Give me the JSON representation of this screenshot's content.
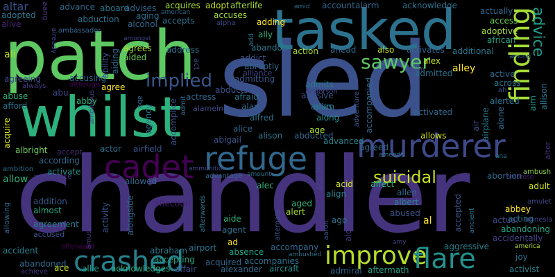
{
  "words": [
    {
      "text": "chandler",
      "color": "#46337e"
    },
    {
      "text": "sled",
      "color": "#3b518b"
    },
    {
      "text": "patch",
      "color": "#5ec962"
    },
    {
      "text": "whilst",
      "color": "#2db27d"
    },
    {
      "text": "tasked",
      "color": "#2c728e"
    },
    {
      "text": "murderer",
      "color": "#3e4989"
    },
    {
      "text": "finding",
      "color": "#a5db36"
    },
    {
      "text": "refuge",
      "color": "#31688e"
    },
    {
      "text": "cadet",
      "color": "#440154"
    },
    {
      "text": "crashed",
      "color": "#26828e"
    },
    {
      "text": "improve",
      "color": "#b5de2b"
    },
    {
      "text": "flare",
      "color": "#21918c"
    },
    {
      "text": "implied",
      "color": "#39558c"
    },
    {
      "text": "sawyer",
      "color": "#5ec962"
    },
    {
      "text": "suicidal",
      "color": "#c8e020"
    },
    {
      "text": "advice",
      "color": "#1f9e89"
    },
    {
      "text": "alter",
      "color": "#472c7a"
    },
    {
      "text": "altar",
      "color": "#3b528b"
    },
    {
      "text": "adopted",
      "color": "#2a788e"
    },
    {
      "text": "alive",
      "color": "#482475"
    },
    {
      "text": "aang",
      "color": "#46337e"
    },
    {
      "text": "already",
      "color": "#3e4989"
    },
    {
      "text": "ali",
      "color": "#b5de2b"
    },
    {
      "text": "agreeing",
      "color": "#3e4989"
    },
    {
      "text": "always",
      "color": "#443a83"
    },
    {
      "text": "abuse",
      "color": "#2db27d"
    },
    {
      "text": "afford",
      "color": "#2c728e"
    },
    {
      "text": "acquire",
      "color": "#d2e21b"
    },
    {
      "text": "albright",
      "color": "#6ece58"
    },
    {
      "text": "ambition",
      "color": "#2c728e"
    },
    {
      "text": "allow",
      "color": "#2db27d"
    },
    {
      "text": "according",
      "color": "#31688e"
    },
    {
      "text": "ambulance",
      "color": "#443983"
    },
    {
      "text": "addition",
      "color": "#38588c"
    },
    {
      "text": "almost",
      "color": "#22a884"
    },
    {
      "text": "agreement",
      "color": "#287c8e"
    },
    {
      "text": "allowing",
      "color": "#31688e"
    },
    {
      "text": "accused",
      "color": "#3b528b"
    },
    {
      "text": "accident",
      "color": "#26828e"
    },
    {
      "text": "afterward",
      "color": "#440154"
    },
    {
      "text": "abandoned",
      "color": "#31688e"
    },
    {
      "text": "achieve",
      "color": "#443983"
    },
    {
      "text": "ace",
      "color": "#c2df23"
    },
    {
      "text": "allie",
      "color": "#1f9e89"
    },
    {
      "text": "acknowledges",
      "color": "#26ad81"
    },
    {
      "text": "affair",
      "color": "#3b528b"
    },
    {
      "text": "alexander",
      "color": "#31688e"
    },
    {
      "text": "aircraft",
      "color": "#21918c"
    },
    {
      "text": "accompanies",
      "color": "#2c728e"
    },
    {
      "text": "acquired",
      "color": "#31688e"
    },
    {
      "text": "accompany",
      "color": "#31688e"
    },
    {
      "text": "absence",
      "color": "#20a486"
    },
    {
      "text": "ad",
      "color": "#fde725"
    },
    {
      "text": "admiral",
      "color": "#31688e"
    },
    {
      "text": "aftermath",
      "color": "#1f9e89"
    },
    {
      "text": "ambushed",
      "color": "#2c728e"
    },
    {
      "text": "amy",
      "color": "#414487"
    },
    {
      "text": "america",
      "color": "#b5de2b"
    },
    {
      "text": "activist",
      "color": "#26828e"
    },
    {
      "text": "joy",
      "color": "#2c728e"
    },
    {
      "text": "aggressive",
      "color": "#26828e"
    },
    {
      "text": "accidentally",
      "color": "#433e85"
    },
    {
      "text": "abandoning",
      "color": "#20a486"
    },
    {
      "text": "acting",
      "color": "#2a788e"
    },
    {
      "text": "abbey",
      "color": "#fde725"
    },
    {
      "text": "adult",
      "color": "#d2e21b"
    },
    {
      "text": "actual",
      "color": "#3e4989"
    },
    {
      "text": "amnesia",
      "color": "#414487"
    },
    {
      "text": "amulet",
      "color": "#414487"
    },
    {
      "text": "ambush",
      "color": "#8fd744"
    },
    {
      "text": "ambrose",
      "color": "#482173"
    },
    {
      "text": "ana",
      "color": "#2a788e"
    },
    {
      "text": "al",
      "color": "#fde725"
    },
    {
      "text": "accepted",
      "color": "#3b528b"
    },
    {
      "text": "ancient",
      "color": "#2c728e"
    },
    {
      "text": "abortion",
      "color": "#31688e"
    },
    {
      "text": "abused",
      "color": "#3b528b"
    },
    {
      "text": "albert",
      "color": "#26828e"
    },
    {
      "text": "allen",
      "color": "#31688e"
    },
    {
      "text": "affect",
      "color": "#29af7f"
    },
    {
      "text": "acid",
      "color": "#d2e21b"
    },
    {
      "text": "align",
      "color": "#26828e"
    },
    {
      "text": "alcoholic",
      "color": "#443983"
    },
    {
      "text": "aaron",
      "color": "#3b528b"
    },
    {
      "text": "ago",
      "color": "#2c728e"
    },
    {
      "text": "alert",
      "color": "#a5db36"
    },
    {
      "text": "aged",
      "color": "#2db27d"
    },
    {
      "text": "alternate",
      "color": "#3b528b"
    },
    {
      "text": "alec",
      "color": "#2db27d"
    },
    {
      "text": "amount",
      "color": "#2c728e"
    },
    {
      "text": "advantage",
      "color": "#31688e"
    },
    {
      "text": "agent",
      "color": "#2c728e"
    },
    {
      "text": "aide",
      "color": "#2db27d"
    },
    {
      "text": "airport",
      "color": "#2c728e"
    },
    {
      "text": "abraham",
      "color": "#2a788e"
    },
    {
      "text": "accepting",
      "color": "#20a486"
    },
    {
      "text": "afterwards",
      "color": "#2a788e"
    },
    {
      "text": "alongside",
      "color": "#31688e"
    },
    {
      "text": "activity",
      "color": "#3b528b"
    },
    {
      "text": "amusement",
      "color": "#443983"
    },
    {
      "text": "affection",
      "color": "#482475"
    },
    {
      "text": "allowed",
      "color": "#31688e"
    },
    {
      "text": "actor",
      "color": "#2c728e"
    },
    {
      "text": "airfield",
      "color": "#39568c"
    },
    {
      "text": "accept",
      "color": "#472c7a"
    },
    {
      "text": "activate",
      "color": "#21918c"
    },
    {
      "text": "alison",
      "color": "#2a788e"
    },
    {
      "text": "abducted",
      "color": "#31688e"
    },
    {
      "text": "abigail",
      "color": "#3b528b"
    },
    {
      "text": "advanced",
      "color": "#26828e"
    },
    {
      "text": "agreed",
      "color": "#31688e"
    },
    {
      "text": "ammunition",
      "color": "#3e4989"
    },
    {
      "text": "amends",
      "color": "#2c728e"
    },
    {
      "text": "academy",
      "color": "#414487"
    },
    {
      "text": "adventure",
      "color": "#3b528b"
    },
    {
      "text": "accompanied",
      "color": "#31688e"
    },
    {
      "text": "along",
      "color": "#21918c"
    },
    {
      "text": "alias",
      "color": "#26828e"
    },
    {
      "text": "age",
      "color": "#a5db36"
    },
    {
      "text": "alfred",
      "color": "#2c728e"
    },
    {
      "text": "alice",
      "color": "#31688e"
    },
    {
      "text": "alan",
      "color": "#31688e"
    },
    {
      "text": "adam",
      "color": "#2c728e"
    },
    {
      "text": "abusive",
      "color": "#3b528b"
    },
    {
      "text": "admits",
      "color": "#2a788e"
    },
    {
      "text": "anderson",
      "color": "#414487"
    },
    {
      "text": "admitting",
      "color": "#39568c"
    },
    {
      "text": "abducts",
      "color": "#3b528b"
    },
    {
      "text": "afraid",
      "color": "#2c728e"
    },
    {
      "text": "actress",
      "color": "#31688e"
    },
    {
      "text": "alamein",
      "color": "#3e4989"
    },
    {
      "text": "admit",
      "color": "#31688e"
    },
    {
      "text": "accomplice",
      "color": "#3b528b"
    },
    {
      "text": "agency",
      "color": "#2c728e"
    },
    {
      "text": "abe",
      "color": "#31688e"
    },
    {
      "text": "ambitious",
      "color": "#414487"
    },
    {
      "text": "abby",
      "color": "#2db27d"
    },
    {
      "text": "abu",
      "color": "#3e4989"
    },
    {
      "text": "although",
      "color": "#440154"
    },
    {
      "text": "accusing",
      "color": "#31688e"
    },
    {
      "text": "agree",
      "color": "#fde725"
    },
    {
      "text": "ability",
      "color": "#3b528b"
    },
    {
      "text": "aiding",
      "color": "#31688e"
    },
    {
      "text": "amongst",
      "color": "#3e4989"
    },
    {
      "text": "agrees",
      "color": "#a5db36"
    },
    {
      "text": "aided",
      "color": "#6ece58"
    },
    {
      "text": "address",
      "color": "#2c728e"
    },
    {
      "text": "act",
      "color": "#3b528b"
    },
    {
      "text": "addict",
      "color": "#3b528b"
    },
    {
      "text": "abruptly",
      "color": "#31688e"
    },
    {
      "text": "alliance",
      "color": "#414487"
    },
    {
      "text": "abandon",
      "color": "#2a788e"
    },
    {
      "text": "action",
      "color": "#a5db36"
    },
    {
      "text": "ahead",
      "color": "#31688e"
    },
    {
      "text": "also",
      "color": "#c2df23"
    },
    {
      "text": "activates",
      "color": "#31688e"
    },
    {
      "text": "additional",
      "color": "#2a788e"
    },
    {
      "text": "alex",
      "color": "#c2df23"
    },
    {
      "text": "alien",
      "color": "#3e4989"
    },
    {
      "text": "admitted",
      "color": "#2c728e"
    },
    {
      "text": "alley",
      "color": "#fde725"
    },
    {
      "text": "active",
      "color": "#31688e"
    },
    {
      "text": "across",
      "color": "#2c728e"
    },
    {
      "text": "ah",
      "color": "#39568c"
    },
    {
      "text": "aim",
      "color": "#1f9e89"
    },
    {
      "text": "allison",
      "color": "#2c728e"
    },
    {
      "text": "alerted",
      "color": "#2c728e"
    },
    {
      "text": "alone",
      "color": "#31688e"
    },
    {
      "text": "airplane",
      "color": "#2a788e"
    },
    {
      "text": "air",
      "color": "#3b528b"
    },
    {
      "text": "allows",
      "color": "#d2e21b"
    },
    {
      "text": "activated",
      "color": "#31688e"
    },
    {
      "text": "ally",
      "color": "#2db27d"
    },
    {
      "text": "adding",
      "color": "#fde725"
    },
    {
      "text": "alpha",
      "color": "#3e4989"
    },
    {
      "text": "accuses",
      "color": "#a5db36"
    },
    {
      "text": "accepts",
      "color": "#2c728e"
    },
    {
      "text": "alcohol",
      "color": "#31688e"
    },
    {
      "text": "ambassador",
      "color": "#31688e"
    },
    {
      "text": "abduction",
      "color": "#2c728e"
    },
    {
      "text": "advance",
      "color": "#31688e"
    },
    {
      "text": "aboard",
      "color": "#2c728e"
    },
    {
      "text": "advises",
      "color": "#31688e"
    },
    {
      "text": "aging",
      "color": "#2c728e"
    },
    {
      "text": "american",
      "color": "#31688e"
    },
    {
      "text": "acquires",
      "color": "#a5db36"
    },
    {
      "text": "adopt",
      "color": "#c2df23"
    },
    {
      "text": "afterlife",
      "color": "#a5db36"
    },
    {
      "text": "add",
      "color": "#2c728e"
    },
    {
      "text": "amid",
      "color": "#2c728e"
    },
    {
      "text": "account",
      "color": "#31688e"
    },
    {
      "text": "alarm",
      "color": "#31688e"
    },
    {
      "text": "acknowledge",
      "color": "#2c728e"
    },
    {
      "text": "actually",
      "color": "#31688e"
    },
    {
      "text": "access",
      "color": "#6ece58"
    },
    {
      "text": "adoptive",
      "color": "#a5db36"
    },
    {
      "text": "african",
      "color": "#20a486"
    },
    {
      "text": "among",
      "color": "#31688e"
    }
  ]
}
